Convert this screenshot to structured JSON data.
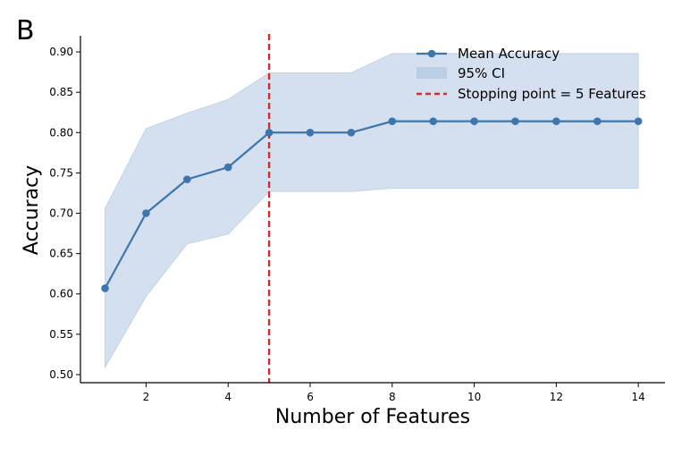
{
  "panel_label": "B",
  "colors": {
    "line": "#3d75ae",
    "ci_fill": "#a9c2df",
    "stop_line": "#c8302d",
    "axis": "#000000"
  },
  "chart_data": {
    "type": "line",
    "title": "",
    "xlabel": "Number of Features",
    "ylabel": "Accuracy",
    "xlim": [
      0.4,
      14.65
    ],
    "ylim": [
      0.49,
      0.92
    ],
    "xticks": [
      2,
      4,
      6,
      8,
      10,
      12,
      14
    ],
    "yticks": [
      0.5,
      0.55,
      0.6,
      0.65,
      0.7,
      0.75,
      0.8,
      0.85,
      0.9
    ],
    "x": [
      1,
      2,
      3,
      4,
      5,
      6,
      7,
      8,
      9,
      10,
      11,
      12,
      13,
      14
    ],
    "series": [
      {
        "name": "Mean Accuracy",
        "values": [
          0.607,
          0.7,
          0.742,
          0.757,
          0.8,
          0.8,
          0.8,
          0.814,
          0.814,
          0.814,
          0.814,
          0.814,
          0.814,
          0.814
        ]
      }
    ],
    "ci": {
      "name": "95% CI",
      "lower": [
        0.509,
        0.597,
        0.662,
        0.674,
        0.727,
        0.727,
        0.727,
        0.731,
        0.731,
        0.731,
        0.731,
        0.731,
        0.731,
        0.731
      ],
      "upper": [
        0.706,
        0.805,
        0.824,
        0.841,
        0.874,
        0.874,
        0.874,
        0.898,
        0.898,
        0.898,
        0.898,
        0.898,
        0.898,
        0.898
      ]
    },
    "stopping_point": {
      "x": 5,
      "label": "Stopping point = 5 Features"
    },
    "grid": false,
    "legend_position": "top-right"
  }
}
